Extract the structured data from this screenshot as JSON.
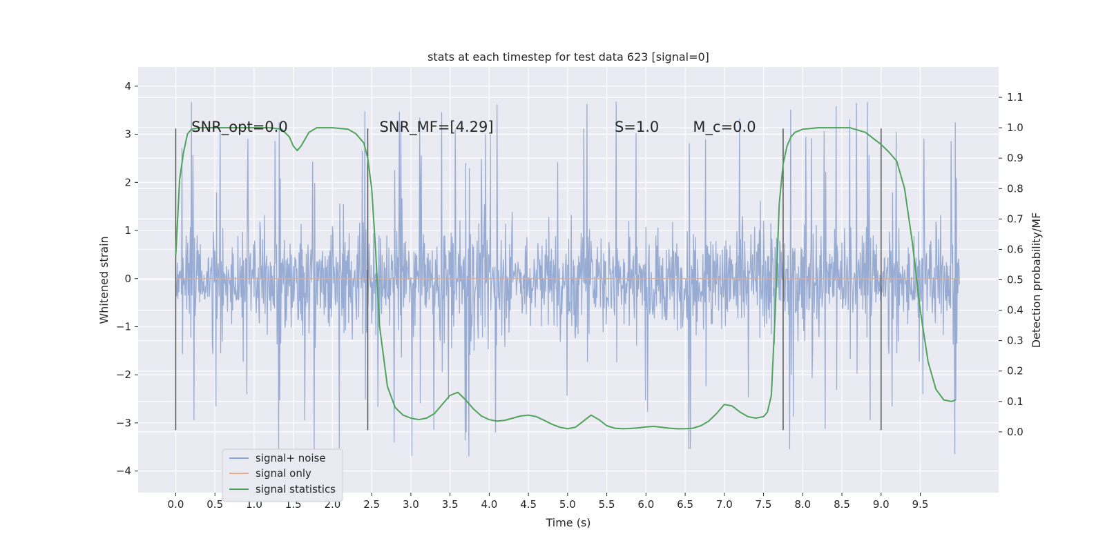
{
  "chart_data": {
    "type": "line",
    "title": "stats at each timestep for test data 623 [signal=0]",
    "xlabel": "Time (s)",
    "ylabel": "Whitened strain",
    "ylabel_right": "Detection probability/MF",
    "xlim": [
      -0.48,
      10.5
    ],
    "ylim": [
      -4.45,
      4.4
    ],
    "ylim_right": [
      -0.2,
      1.2
    ],
    "x_ticks": [
      0.0,
      0.5,
      1.0,
      1.5,
      2.0,
      2.5,
      3.0,
      3.5,
      4.0,
      4.5,
      5.0,
      5.5,
      6.0,
      6.5,
      7.0,
      7.5,
      8.0,
      8.5,
      9.0,
      9.5
    ],
    "y_ticks": [
      -4,
      -3,
      -2,
      -1,
      0,
      1,
      2,
      3,
      4
    ],
    "y_ticks_right": [
      0.0,
      0.1,
      0.2,
      0.3,
      0.4,
      0.5,
      0.6,
      0.7,
      0.8,
      0.9,
      1.0,
      1.1
    ],
    "annotations": [
      {
        "text": "SNR_opt=0.0",
        "x": 0.2,
        "y": 3.15
      },
      {
        "text": "SNR_MF=[4.29]",
        "x": 2.6,
        "y": 3.15
      },
      {
        "text": "S=1.0",
        "x": 5.6,
        "y": 3.15
      },
      {
        "text": "M_c=0.0",
        "x": 6.6,
        "y": 3.15
      }
    ],
    "vlines": {
      "x": [
        0.0,
        2.45,
        7.75,
        9.0
      ],
      "ymin": -3.15,
      "ymax": 3.12,
      "color": "#555555"
    },
    "legend": {
      "location": "lower-left",
      "entries": [
        "signal+ noise",
        "signal only",
        "signal statistics"
      ]
    },
    "series": [
      {
        "name": "signal+ noise",
        "axis": "left",
        "color": "#8fa5cf",
        "x_range": [
          0.0,
          10.0
        ],
        "envelope_typical": [
          -1.9,
          1.9
        ],
        "extremes": {
          "max": 3.98,
          "min": -4.05
        }
      },
      {
        "name": "signal only",
        "axis": "left",
        "color": "#e8a98b",
        "x": [
          0.0,
          10.0
        ],
        "y": [
          0.0,
          0.0
        ]
      },
      {
        "name": "signal statistics",
        "axis": "right",
        "color": "#4da35a",
        "x": [
          0.0,
          0.05,
          0.1,
          0.15,
          0.2,
          0.3,
          0.5,
          0.8,
          1.0,
          1.2,
          1.35,
          1.45,
          1.5,
          1.55,
          1.6,
          1.7,
          1.8,
          2.0,
          2.2,
          2.3,
          2.4,
          2.45,
          2.5,
          2.55,
          2.6,
          2.7,
          2.8,
          2.9,
          3.0,
          3.1,
          3.2,
          3.3,
          3.4,
          3.5,
          3.6,
          3.7,
          3.8,
          3.9,
          4.0,
          4.1,
          4.2,
          4.3,
          4.4,
          4.5,
          4.6,
          4.7,
          4.8,
          4.9,
          5.0,
          5.1,
          5.2,
          5.3,
          5.4,
          5.5,
          5.6,
          5.7,
          5.8,
          5.9,
          6.0,
          6.1,
          6.2,
          6.3,
          6.4,
          6.5,
          6.6,
          6.7,
          6.8,
          6.9,
          7.0,
          7.1,
          7.2,
          7.3,
          7.4,
          7.5,
          7.55,
          7.6,
          7.65,
          7.7,
          7.75,
          7.8,
          7.85,
          7.9,
          8.0,
          8.2,
          8.4,
          8.6,
          8.8,
          9.0,
          9.1,
          9.2,
          9.3,
          9.4,
          9.5,
          9.6,
          9.7,
          9.8,
          9.9,
          9.95
        ],
        "y": [
          0.58,
          0.83,
          0.92,
          0.98,
          0.995,
          1.0,
          1.0,
          1.0,
          1.0,
          1.0,
          0.995,
          0.97,
          0.94,
          0.925,
          0.94,
          0.985,
          1.0,
          1.0,
          0.995,
          0.98,
          0.95,
          0.9,
          0.8,
          0.6,
          0.35,
          0.15,
          0.08,
          0.055,
          0.045,
          0.04,
          0.045,
          0.06,
          0.09,
          0.12,
          0.13,
          0.105,
          0.075,
          0.052,
          0.04,
          0.035,
          0.038,
          0.045,
          0.052,
          0.055,
          0.05,
          0.038,
          0.025,
          0.015,
          0.01,
          0.015,
          0.035,
          0.055,
          0.04,
          0.02,
          0.012,
          0.01,
          0.011,
          0.013,
          0.016,
          0.018,
          0.015,
          0.012,
          0.01,
          0.01,
          0.012,
          0.02,
          0.035,
          0.06,
          0.09,
          0.085,
          0.065,
          0.05,
          0.045,
          0.05,
          0.065,
          0.12,
          0.4,
          0.75,
          0.88,
          0.94,
          0.97,
          0.985,
          0.995,
          1.0,
          1.0,
          1.0,
          0.985,
          0.945,
          0.92,
          0.89,
          0.8,
          0.62,
          0.4,
          0.23,
          0.14,
          0.105,
          0.1,
          0.105
        ]
      }
    ]
  }
}
